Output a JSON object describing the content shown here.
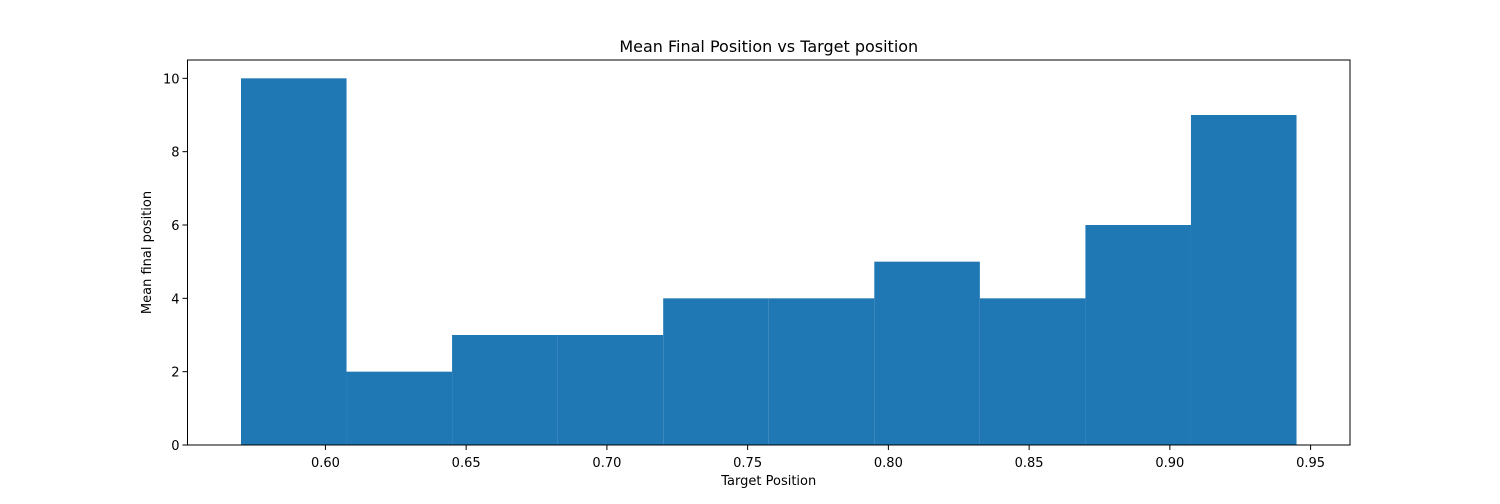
{
  "chart_data": {
    "type": "bar",
    "title": "Mean Final Position vs Target position",
    "xlabel": "Target Position",
    "ylabel": "Mean final position",
    "bins": [
      {
        "x0": 0.57,
        "x1": 0.6075,
        "value": 10
      },
      {
        "x0": 0.6075,
        "x1": 0.645,
        "value": 2
      },
      {
        "x0": 0.645,
        "x1": 0.6825,
        "value": 3
      },
      {
        "x0": 0.6825,
        "x1": 0.72,
        "value": 3
      },
      {
        "x0": 0.72,
        "x1": 0.7575,
        "value": 4
      },
      {
        "x0": 0.7575,
        "x1": 0.795,
        "value": 4
      },
      {
        "x0": 0.795,
        "x1": 0.8325,
        "value": 5
      },
      {
        "x0": 0.8325,
        "x1": 0.87,
        "value": 4
      },
      {
        "x0": 0.87,
        "x1": 0.9075,
        "value": 6
      },
      {
        "x0": 0.9075,
        "x1": 0.945,
        "value": 9
      }
    ],
    "xlim": [
      0.551,
      0.964
    ],
    "ylim": [
      0,
      10.5
    ],
    "xticks": [
      0.6,
      0.65,
      0.7,
      0.75,
      0.8,
      0.85,
      0.9,
      0.95
    ],
    "xtick_labels": [
      "0.60",
      "0.65",
      "0.70",
      "0.75",
      "0.80",
      "0.85",
      "0.90",
      "0.95"
    ],
    "yticks": [
      0,
      2,
      4,
      6,
      8,
      10
    ],
    "ytick_labels": [
      "0",
      "2",
      "4",
      "6",
      "8",
      "10"
    ],
    "bar_color": "#1f77b4",
    "grid": false,
    "legend": "none"
  }
}
